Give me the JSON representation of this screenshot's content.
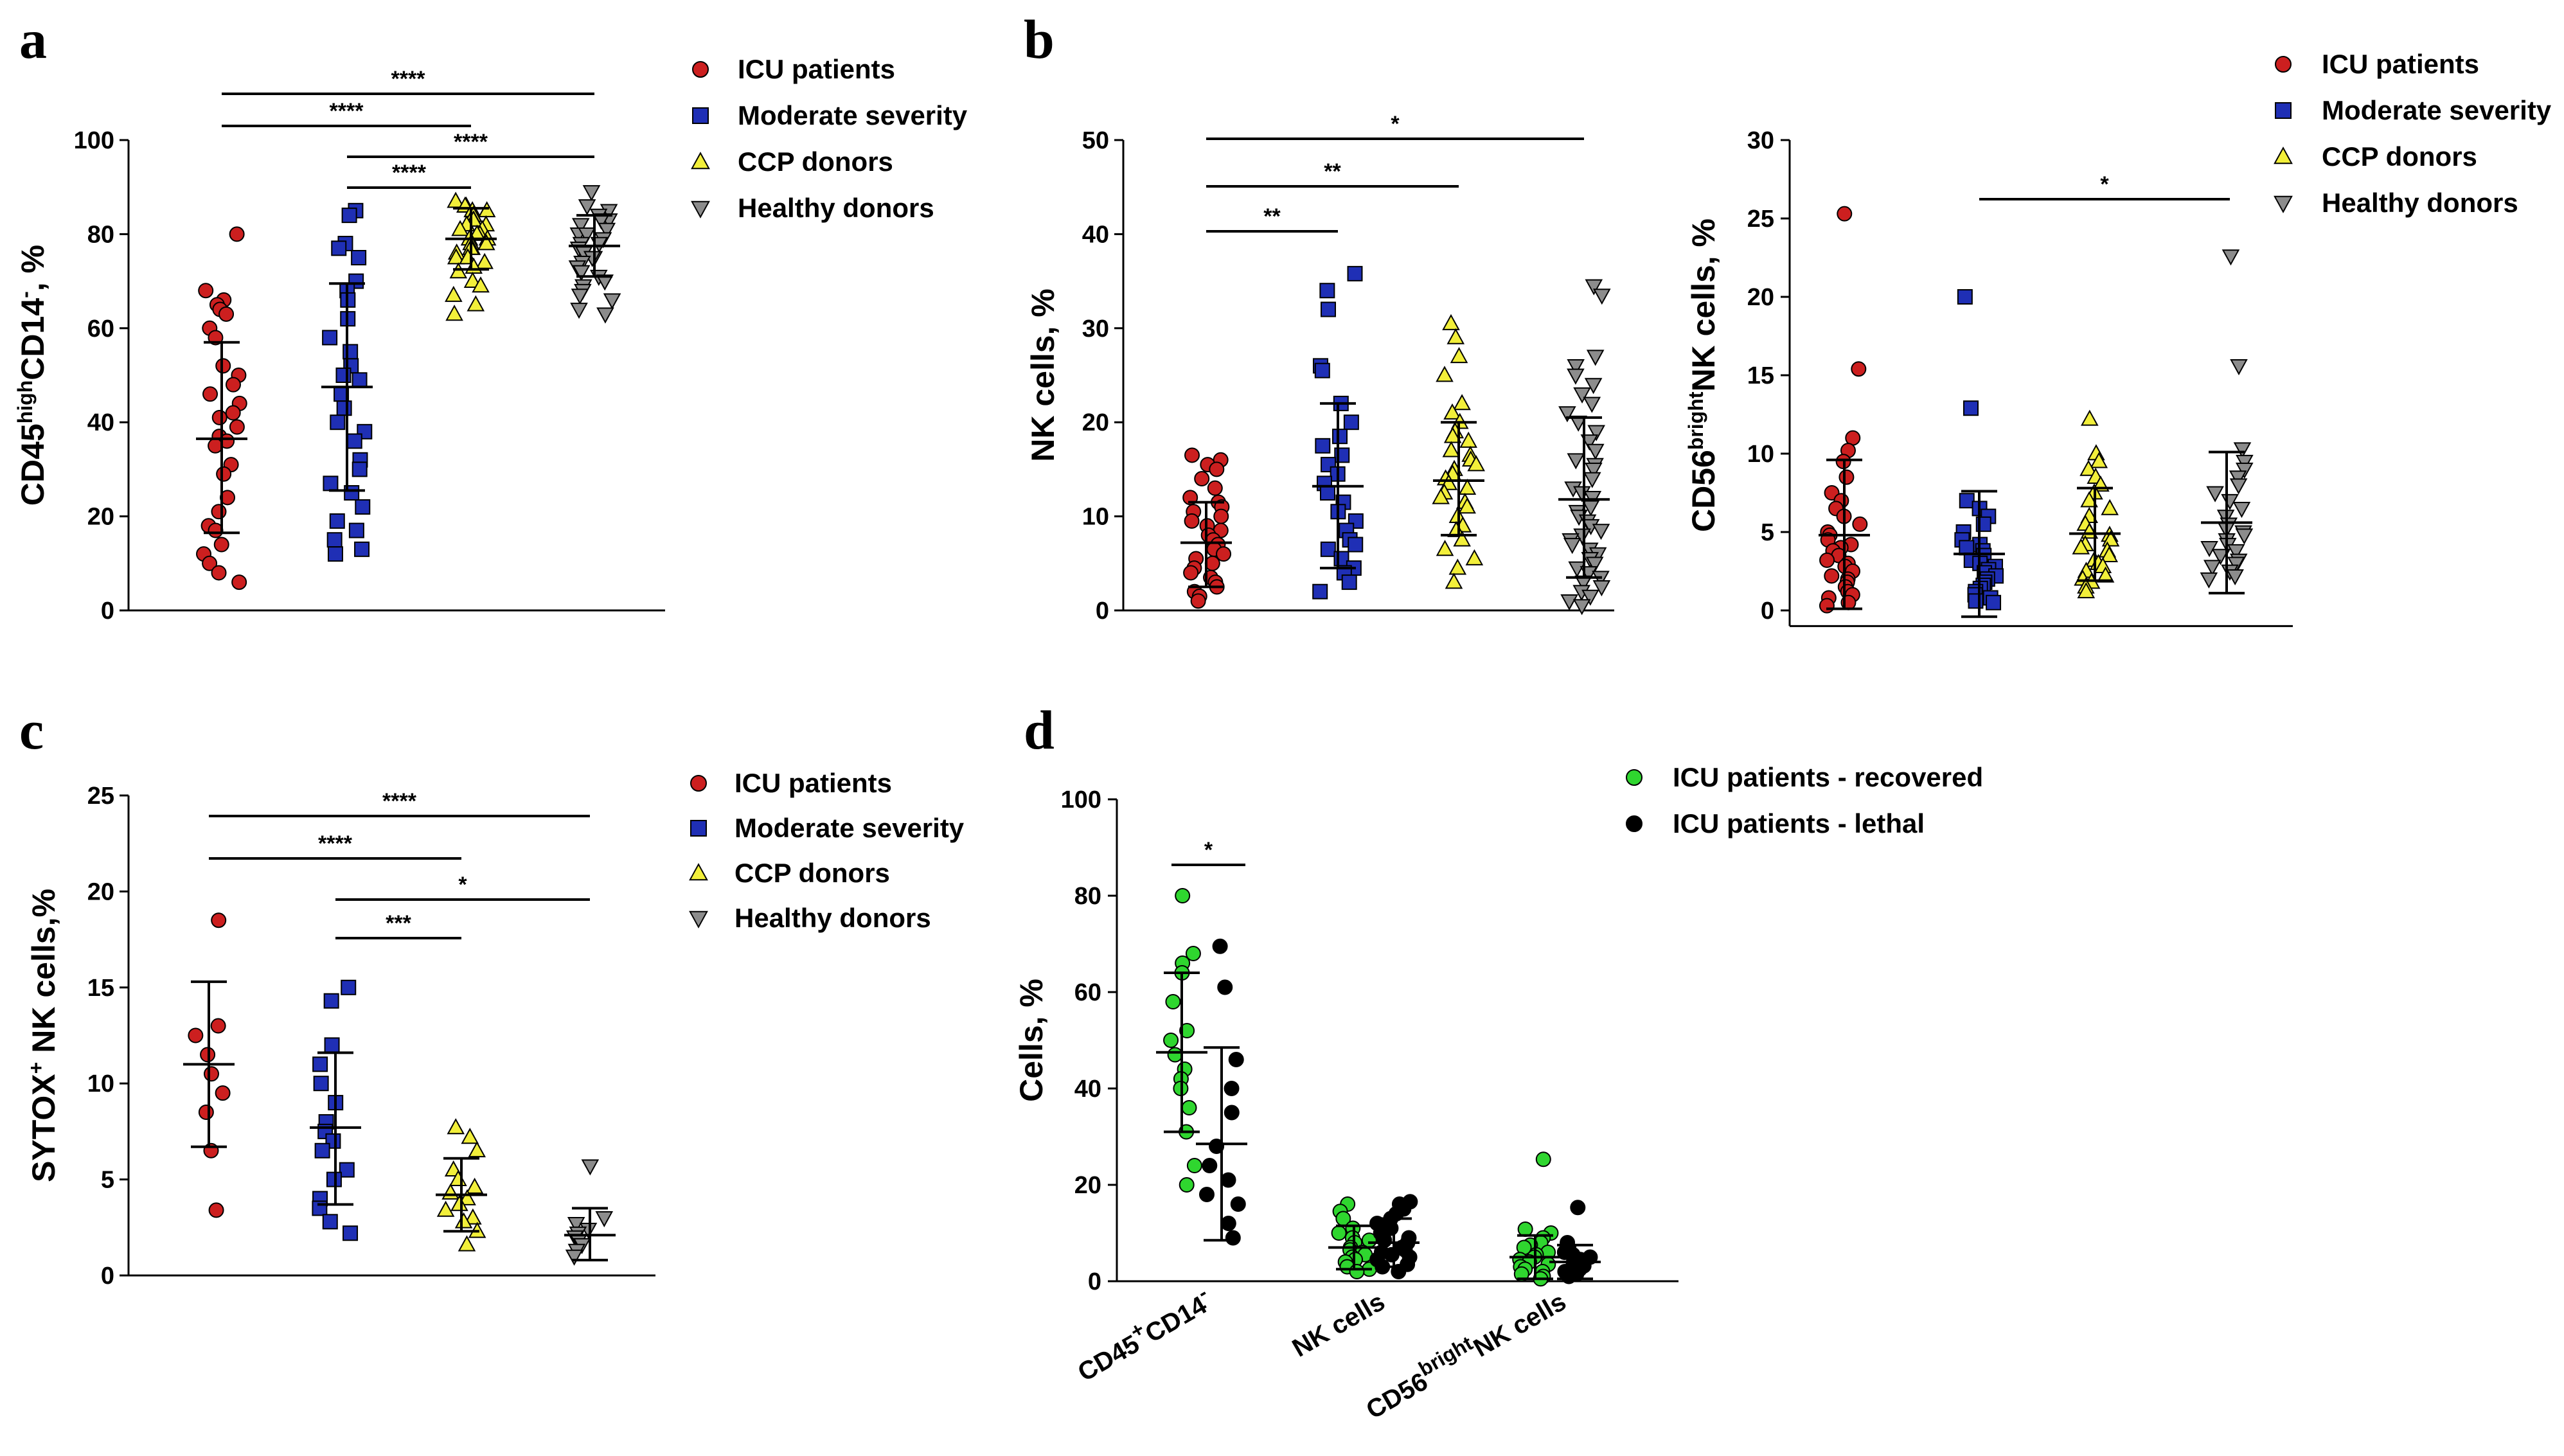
{
  "colors": {
    "icu": "#cc1f1f",
    "moderate": "#1f2fb5",
    "ccp": "#f2ef3a",
    "healthy": "#8c8c8c",
    "recovered": "#2fd62f",
    "lethal": "#000000"
  },
  "chart_data": [
    {
      "id": "a",
      "panel_label": "a",
      "type": "scatter",
      "ylabel_parts": [
        {
          "text": "CD45",
          "sup": false
        },
        {
          "text": "high",
          "sup": true
        },
        {
          "text": "CD14",
          "sup": false
        },
        {
          "text": "-",
          "sup": true
        },
        {
          "text": ", %",
          "sup": false
        }
      ],
      "ylim": [
        0,
        100
      ],
      "yticks": [
        0,
        20,
        40,
        60,
        80,
        100
      ],
      "legend": [
        "ICU patients",
        "Moderate severity",
        "CCP donors",
        "Healthy donors"
      ],
      "groups": [
        {
          "name": "ICU patients",
          "marker": "circle",
          "color": "icu",
          "mean": 36.5,
          "sd_low": 16.5,
          "sd_high": 57,
          "values": [
            80,
            68,
            66,
            65,
            64,
            63,
            60,
            58,
            52,
            50,
            48,
            46,
            44,
            42,
            41,
            39,
            37,
            36,
            35,
            31,
            29,
            24,
            21,
            18,
            17,
            14,
            12,
            10,
            8,
            6
          ]
        },
        {
          "name": "Moderate severity",
          "marker": "square",
          "color": "moderate",
          "mean": 47.5,
          "sd_low": 25.5,
          "sd_high": 69.5,
          "values": [
            85,
            84,
            78,
            77,
            75,
            70,
            68,
            66,
            62,
            58,
            55,
            52,
            50,
            49,
            46,
            43,
            40,
            38,
            36,
            32,
            30,
            27,
            25,
            22,
            19,
            17,
            15,
            13,
            12
          ]
        },
        {
          "name": "CCP donors",
          "marker": "triangle-up",
          "color": "ccp",
          "mean": 79,
          "sd_low": 72.5,
          "sd_high": 85.5,
          "values": [
            87,
            86,
            86,
            85,
            85,
            84,
            84,
            83,
            83,
            82,
            82,
            81,
            81,
            80,
            80,
            79,
            79,
            78,
            78,
            77,
            77,
            76,
            75,
            75,
            74,
            73,
            72,
            70,
            69,
            67,
            65,
            63
          ]
        },
        {
          "name": "Healthy donors",
          "marker": "triangle-down",
          "color": "healthy",
          "mean": 77.5,
          "sd_low": 71,
          "sd_high": 84,
          "values": [
            89,
            86,
            85,
            84,
            83,
            83,
            82,
            81,
            80,
            80,
            79,
            78,
            78,
            77,
            76,
            75,
            75,
            74,
            73,
            72,
            71,
            70,
            69,
            68,
            67,
            66,
            64,
            63
          ]
        }
      ],
      "brackets": [
        {
          "from": 0,
          "to": 3,
          "label": "****"
        },
        {
          "from": 0,
          "to": 2,
          "label": "****"
        },
        {
          "from": 1,
          "to": 3,
          "label": "****"
        },
        {
          "from": 1,
          "to": 2,
          "label": "****"
        }
      ]
    },
    {
      "id": "b1",
      "panel_label": "b",
      "type": "scatter",
      "ylabel_parts": [
        {
          "text": "NK cells, %",
          "sup": false
        }
      ],
      "ylim": [
        0,
        50
      ],
      "yticks": [
        0,
        10,
        20,
        30,
        40,
        50
      ],
      "groups": [
        {
          "name": "ICU patients",
          "marker": "circle",
          "color": "icu",
          "mean": 7.2,
          "sd_low": 2.5,
          "sd_high": 11.5,
          "values": [
            16.5,
            16,
            15.5,
            15,
            14,
            13,
            12,
            11.5,
            11,
            10.5,
            10,
            9.5,
            9,
            8.5,
            8,
            7.5,
            7,
            6.5,
            6,
            5.5,
            5,
            4.5,
            4,
            3.5,
            3,
            2.5,
            2,
            1.5,
            1
          ]
        },
        {
          "name": "Moderate severity",
          "marker": "square",
          "color": "moderate",
          "mean": 13.2,
          "sd_low": 4.5,
          "sd_high": 22,
          "values": [
            35.8,
            34,
            32,
            26,
            25.5,
            22,
            20,
            18.5,
            17.5,
            16.5,
            15.5,
            14.5,
            13.5,
            12.5,
            11.5,
            10.5,
            9.5,
            8.5,
            7.5,
            7,
            6.5,
            5.5,
            4.5,
            4,
            3,
            2
          ]
        },
        {
          "name": "CCP donors",
          "marker": "triangle-up",
          "color": "ccp",
          "mean": 13.8,
          "sd_low": 8,
          "sd_high": 20,
          "values": [
            30.5,
            29,
            27,
            25,
            22,
            21,
            20,
            19,
            18.5,
            18,
            17,
            16.5,
            16,
            15.5,
            15,
            14.5,
            14,
            13.5,
            13,
            12.5,
            12,
            11.5,
            11,
            10,
            9,
            8.5,
            7.5,
            6.5,
            5.5,
            4.5,
            3
          ]
        },
        {
          "name": "Healthy donors",
          "marker": "triangle-down",
          "color": "healthy",
          "mean": 11.8,
          "sd_low": 3.5,
          "sd_high": 20.5,
          "values": [
            34.5,
            33.5,
            27,
            26,
            25,
            24,
            23,
            22,
            21,
            20,
            19,
            18,
            17,
            16,
            15.5,
            15,
            14,
            13,
            12.5,
            12,
            11,
            10.5,
            10,
            9.5,
            9,
            8.5,
            8,
            7.5,
            7,
            6.5,
            6,
            5.5,
            5,
            4.5,
            4,
            3.5,
            3,
            2.5,
            2,
            1.5,
            1,
            0.5
          ]
        }
      ],
      "brackets": [
        {
          "from": 0,
          "to": 3,
          "label": "*"
        },
        {
          "from": 0,
          "to": 2,
          "label": "**"
        },
        {
          "from": 0,
          "to": 1,
          "label": "**"
        }
      ]
    },
    {
      "id": "b2",
      "panel_label": "",
      "type": "scatter",
      "ylabel_parts": [
        {
          "text": "CD56",
          "sup": false
        },
        {
          "text": "bright",
          "sup": true
        },
        {
          "text": "NK cells, %",
          "sup": false
        }
      ],
      "ylim": [
        0,
        30
      ],
      "yticks": [
        0,
        5,
        10,
        15,
        20,
        25,
        30
      ],
      "legend": [
        "ICU patients",
        "Moderate severity",
        "CCP donors",
        "Healthy donors"
      ],
      "groups": [
        {
          "name": "ICU patients",
          "marker": "circle",
          "color": "icu",
          "mean": 4.8,
          "sd_low": 0.1,
          "sd_high": 9.6,
          "values": [
            25.3,
            15.4,
            11,
            10.2,
            9.5,
            8.5,
            7.5,
            7,
            6.5,
            6,
            5.5,
            5,
            4.8,
            4.5,
            4.2,
            4,
            3.8,
            3.5,
            3.2,
            3,
            2.8,
            2.5,
            2.2,
            2,
            1.8,
            1.5,
            1.2,
            1,
            0.8,
            0.5,
            0.3
          ]
        },
        {
          "name": "Moderate severity",
          "marker": "square",
          "color": "moderate",
          "mean": 3.6,
          "sd_low": -0.4,
          "sd_high": 7.6,
          "values": [
            20,
            12.9,
            7,
            6.5,
            6,
            5.5,
            5,
            4.5,
            4.2,
            4,
            3.8,
            3.5,
            3.2,
            3,
            2.8,
            2.6,
            2.4,
            2.2,
            2,
            1.8,
            1.6,
            1.4,
            1.2,
            1,
            0.8,
            0.6,
            0.5
          ]
        },
        {
          "name": "CCP donors",
          "marker": "triangle-up",
          "color": "ccp",
          "mean": 4.9,
          "sd_low": 1.9,
          "sd_high": 7.8,
          "values": [
            12.2,
            10,
            9.5,
            9,
            8.5,
            8,
            7.5,
            7,
            6.5,
            6,
            5.5,
            5,
            4.8,
            4.5,
            4.2,
            4,
            3.8,
            3.5,
            3.2,
            3,
            2.8,
            2.5,
            2.2,
            2,
            1.8,
            1.5,
            1.2
          ]
        },
        {
          "name": "Healthy donors",
          "marker": "triangle-down",
          "color": "healthy",
          "mean": 5.6,
          "sd_low": 1.1,
          "sd_high": 10.1,
          "values": [
            22.6,
            15.6,
            10.3,
            9.5,
            9,
            8.5,
            8,
            7.5,
            7,
            6.5,
            6,
            5.5,
            5.2,
            5,
            4.8,
            4.5,
            4.2,
            4,
            3.8,
            3.5,
            3.2,
            3,
            2.8,
            2.5,
            2.2,
            2
          ]
        }
      ],
      "brackets": [
        {
          "from": 1,
          "to": 3,
          "label": "*"
        }
      ]
    },
    {
      "id": "c",
      "panel_label": "c",
      "type": "scatter",
      "ylabel_parts": [
        {
          "text": "SYTOX",
          "sup": false
        },
        {
          "text": "+",
          "sup": true
        },
        {
          "text": " NK cells,%",
          "sup": false
        }
      ],
      "ylim": [
        0,
        25
      ],
      "yticks": [
        0,
        5,
        10,
        15,
        20,
        25
      ],
      "legend": [
        "ICU patients",
        "Moderate severity",
        "CCP donors",
        "Healthy donors"
      ],
      "groups": [
        {
          "name": "ICU patients",
          "marker": "circle",
          "color": "icu",
          "mean": 11,
          "sd_low": 6.7,
          "sd_high": 15.3,
          "values": [
            18.5,
            13,
            12.5,
            11.5,
            10.5,
            9.5,
            8.5,
            6.5,
            3.4
          ]
        },
        {
          "name": "Moderate severity",
          "marker": "square",
          "color": "moderate",
          "mean": 7.7,
          "sd_low": 3.7,
          "sd_high": 11.6,
          "values": [
            15,
            14.3,
            12,
            11,
            10,
            9,
            8,
            7.5,
            7,
            6.5,
            5.5,
            5,
            4,
            3.5,
            2.8,
            2.2
          ]
        },
        {
          "name": "CCP donors",
          "marker": "triangle-up",
          "color": "ccp",
          "mean": 4.2,
          "sd_low": 2.3,
          "sd_high": 6.1,
          "values": [
            7.7,
            7.2,
            6.5,
            5.5,
            5,
            4.6,
            4.3,
            4,
            3.7,
            3.4,
            3,
            2.8,
            2.3,
            1.6
          ]
        },
        {
          "name": "Healthy donors",
          "marker": "triangle-down",
          "color": "healthy",
          "mean": 2.1,
          "sd_low": 0.8,
          "sd_high": 3.5,
          "values": [
            5.7,
            3,
            2.7,
            2.4,
            2.2,
            2,
            1.8,
            1.6,
            1.3,
            1
          ]
        }
      ],
      "brackets": [
        {
          "from": 0,
          "to": 3,
          "label": "****"
        },
        {
          "from": 0,
          "to": 2,
          "label": "****"
        },
        {
          "from": 1,
          "to": 3,
          "label": "*"
        },
        {
          "from": 1,
          "to": 2,
          "label": "***"
        }
      ]
    },
    {
      "id": "d",
      "panel_label": "d",
      "type": "scatter",
      "ylabel_parts": [
        {
          "text": "Cells, %",
          "sup": false
        }
      ],
      "ylim": [
        0,
        100
      ],
      "yticks": [
        0,
        20,
        40,
        60,
        80,
        100
      ],
      "legend": [
        "ICU patients - recovered",
        "ICU patients - lethal"
      ],
      "categories": [
        [
          {
            "text": "CD45",
            "sup": false
          },
          {
            "text": "+",
            "sup": true
          },
          {
            "text": "CD14",
            "sup": false
          },
          {
            "text": "-",
            "sup": true
          }
        ],
        [
          {
            "text": "NK cells",
            "sup": false
          }
        ],
        [
          {
            "text": "CD56",
            "sup": false
          },
          {
            "text": "bright",
            "sup": true
          },
          {
            "text": "NK cells",
            "sup": false
          }
        ]
      ],
      "groups": [
        {
          "name": "ICU patients - recovered",
          "category": 0,
          "marker": "circle",
          "color": "recovered",
          "mean": 47.5,
          "sd_low": 31,
          "sd_high": 64,
          "values": [
            80,
            68,
            66,
            64,
            58,
            52,
            50,
            47,
            44,
            42,
            40,
            36,
            31,
            24,
            20
          ]
        },
        {
          "name": "ICU patients - lethal",
          "category": 0,
          "marker": "circle",
          "color": "lethal",
          "mean": 28.5,
          "sd_low": 8.5,
          "sd_high": 48.5,
          "values": [
            69.5,
            61,
            46,
            40,
            35,
            28,
            24,
            21,
            18,
            16,
            12,
            9
          ]
        },
        {
          "name": "ICU patients - recovered",
          "category": 1,
          "marker": "circle",
          "color": "recovered",
          "mean": 7,
          "sd_low": 2.5,
          "sd_high": 11.5,
          "values": [
            16,
            14.5,
            13,
            11,
            10,
            9,
            8.5,
            8,
            7,
            6.5,
            6,
            5.5,
            5,
            4.5,
            4,
            3,
            2.5,
            2
          ]
        },
        {
          "name": "ICU patients - lethal",
          "category": 1,
          "marker": "circle",
          "color": "lethal",
          "mean": 8,
          "sd_low": 3,
          "sd_high": 13,
          "values": [
            16.5,
            16,
            15,
            14,
            13,
            12,
            11,
            10,
            9,
            8.5,
            8,
            7,
            6.5,
            6,
            5.5,
            5,
            4.5,
            3.5,
            3,
            2
          ]
        },
        {
          "name": "ICU patients - recovered",
          "category": 2,
          "marker": "circle",
          "color": "recovered",
          "mean": 5,
          "sd_low": 0.5,
          "sd_high": 9.5,
          "values": [
            25.3,
            10.8,
            10,
            9,
            8,
            7.5,
            7,
            6,
            5.5,
            5,
            4.5,
            4,
            3.5,
            3,
            2.5,
            2,
            1.5,
            1,
            0.5
          ]
        },
        {
          "name": "ICU patients - lethal",
          "category": 2,
          "marker": "circle",
          "color": "lethal",
          "mean": 4,
          "sd_low": 0.5,
          "sd_high": 7.5,
          "values": [
            15.3,
            8,
            6,
            5.5,
            5,
            4.5,
            4,
            3.8,
            3.5,
            3.2,
            3,
            2.8,
            2.5,
            2,
            1.5,
            1
          ]
        }
      ],
      "brackets": [
        {
          "from": 0,
          "to": 1,
          "label": "*"
        }
      ]
    }
  ]
}
